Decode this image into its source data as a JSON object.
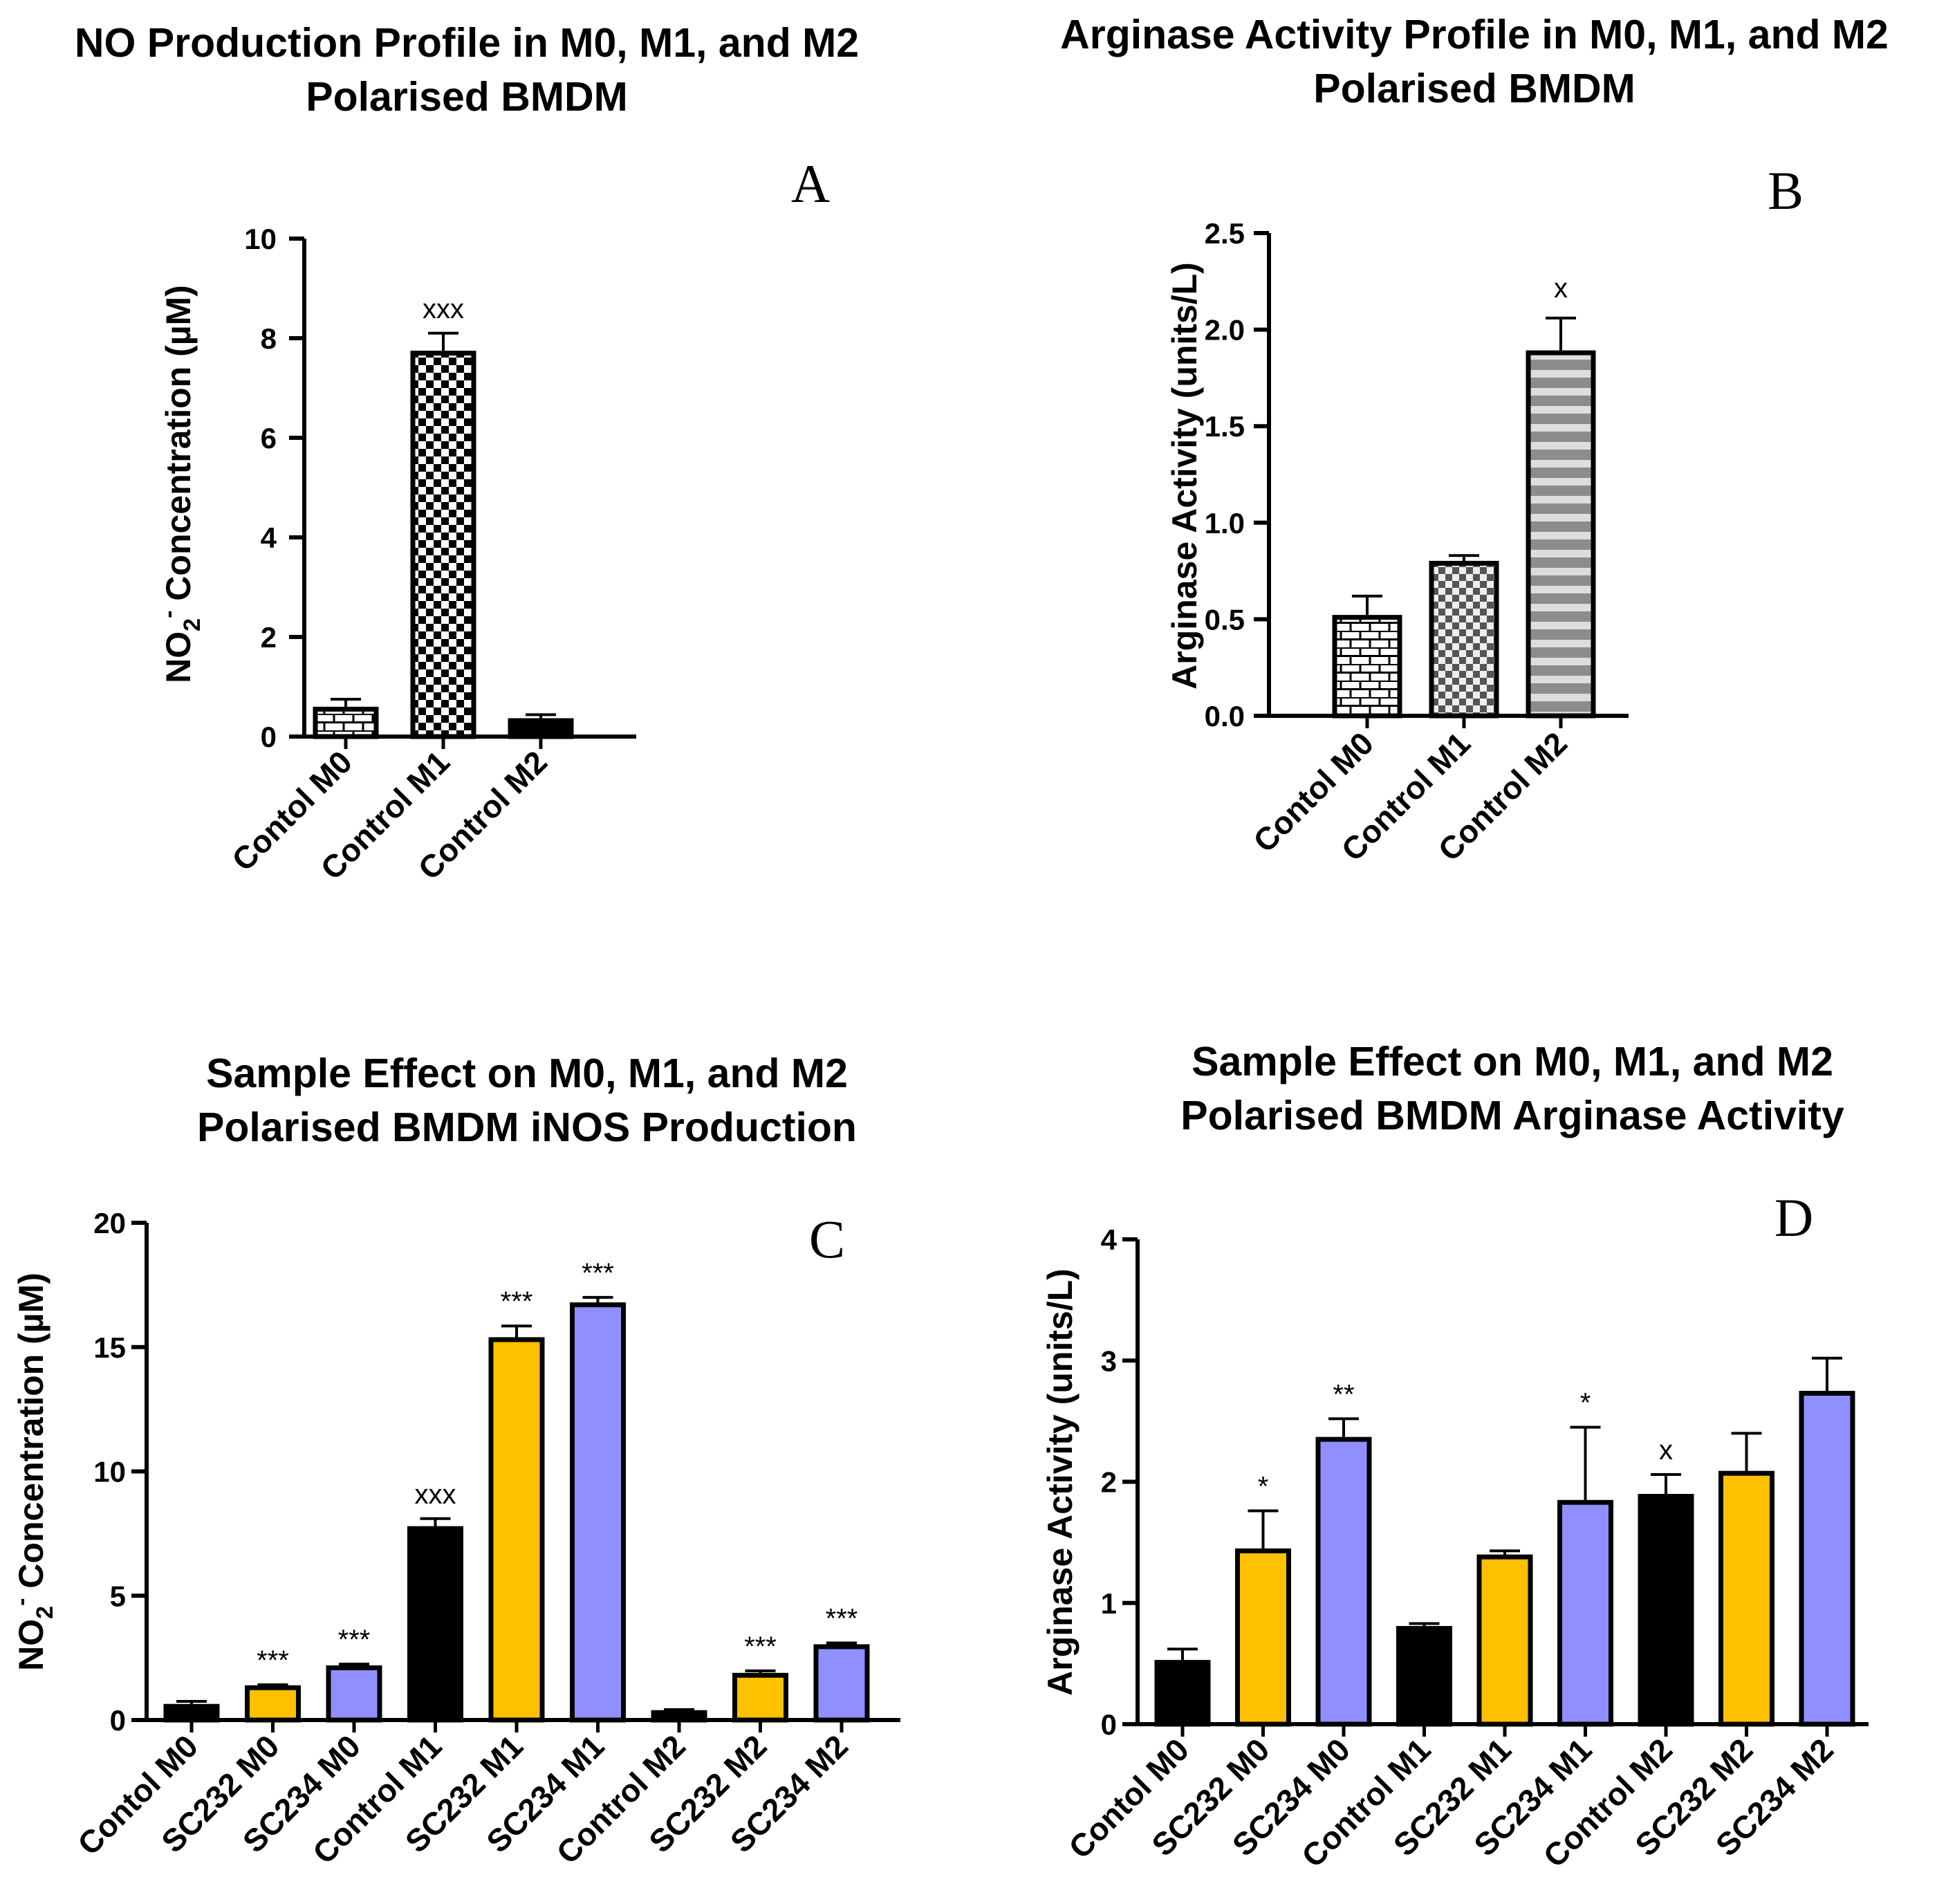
{
  "chart_data": [
    {
      "panel": "A",
      "type": "bar",
      "title_lines": [
        "NO Production Profile in M0, M1, and M2",
        "Polarised BMDM"
      ],
      "ylabel": {
        "main": "NO",
        "sub": "2",
        "sup": "-",
        "rest": " Concentration (µM)"
      },
      "xlabel": "",
      "ylim": [
        0,
        10
      ],
      "yticks": [
        0,
        2,
        4,
        6,
        8,
        10
      ],
      "categories": [
        "Contol M0",
        "Control M1",
        "Control M2"
      ],
      "values": [
        0.55,
        7.7,
        0.32
      ],
      "errors": [
        0.2,
        0.4,
        0.12
      ],
      "patterns": [
        "brick",
        "checker",
        "solid"
      ],
      "colors": [
        "#000000",
        "#000000",
        "#000000"
      ],
      "significance": [
        "",
        "xxx",
        ""
      ]
    },
    {
      "panel": "B",
      "type": "bar",
      "title_lines": [
        "Arginase Activity Profile in M0, M1, and M2",
        "Polarised BMDM"
      ],
      "ylabel": {
        "main": "Arginase Activity (units/L)",
        "sub": "",
        "sup": "",
        "rest": ""
      },
      "xlabel": "",
      "ylim": [
        0,
        2.5
      ],
      "yticks": [
        "0.0",
        "0.5",
        "1.0",
        "1.5",
        "2.0",
        "2.5"
      ],
      "categories": [
        "Contol M0",
        "Control M1",
        "Control M2"
      ],
      "values": [
        0.51,
        0.79,
        1.88
      ],
      "errors": [
        0.11,
        0.04,
        0.18
      ],
      "patterns": [
        "brick",
        "checker-gray",
        "stripes-gray"
      ],
      "colors": [
        "#000000",
        "#000000",
        "#000000"
      ],
      "significance": [
        "",
        "",
        "x"
      ]
    },
    {
      "panel": "C",
      "type": "bar",
      "title_lines": [
        "Sample Effect on M0, M1, and M2",
        "Polarised BMDM iNOS Production"
      ],
      "ylabel": {
        "main": "NO",
        "sub": "2",
        "sup": "-",
        "rest": " Concentration (µM)"
      },
      "xlabel": "",
      "ylim": [
        0,
        20
      ],
      "yticks": [
        0,
        5,
        10,
        15,
        20
      ],
      "categories": [
        "Contol M0",
        "SC232 M0",
        "SC234 M0",
        "Control M1",
        "SC232 M1",
        "SC234 M1",
        "Control M2",
        "SC232 M2",
        "SC234 M2"
      ],
      "values": [
        0.55,
        1.3,
        2.1,
        7.7,
        15.3,
        16.7,
        0.3,
        1.8,
        2.95
      ],
      "errors": [
        0.2,
        0.12,
        0.15,
        0.4,
        0.55,
        0.3,
        0.12,
        0.18,
        0.15
      ],
      "patterns": [
        "solid",
        "solid",
        "solid",
        "solid",
        "solid",
        "solid",
        "solid",
        "solid",
        "solid"
      ],
      "colors": [
        "#000000",
        "#FFC000",
        "#8F8FFF",
        "#000000",
        "#FFC000",
        "#8F8FFF",
        "#000000",
        "#FFC000",
        "#8F8FFF"
      ],
      "significance": [
        "",
        "***",
        "***",
        "xxx",
        "***",
        "***",
        "",
        "***",
        "***"
      ]
    },
    {
      "panel": "D",
      "type": "bar",
      "title_lines": [
        "Sample Effect on M0, M1, and M2",
        "Polarised BMDM Arginase Activity"
      ],
      "ylabel": {
        "main": "Arginase Activity (units/L)",
        "sub": "",
        "sup": "",
        "rest": ""
      },
      "xlabel": "",
      "ylim": [
        0,
        4
      ],
      "yticks": [
        0,
        1,
        2,
        3,
        4
      ],
      "categories": [
        "Contol M0",
        "SC232 M0",
        "SC234 M0",
        "Control M1",
        "SC232 M1",
        "SC234 M1",
        "Control M2",
        "SC232 M2",
        "SC234 M2"
      ],
      "values": [
        0.51,
        1.43,
        2.35,
        0.79,
        1.38,
        1.83,
        1.88,
        2.07,
        2.73
      ],
      "errors": [
        0.11,
        0.33,
        0.17,
        0.04,
        0.05,
        0.62,
        0.18,
        0.33,
        0.29
      ],
      "patterns": [
        "solid",
        "solid",
        "solid",
        "solid",
        "solid",
        "solid",
        "solid",
        "solid",
        "solid"
      ],
      "colors": [
        "#000000",
        "#FFC000",
        "#8F8FFF",
        "#000000",
        "#FFC000",
        "#8F8FFF",
        "#000000",
        "#FFC000",
        "#8F8FFF"
      ],
      "significance": [
        "",
        "*",
        "**",
        "",
        "",
        "*",
        "x",
        "",
        ""
      ]
    }
  ]
}
